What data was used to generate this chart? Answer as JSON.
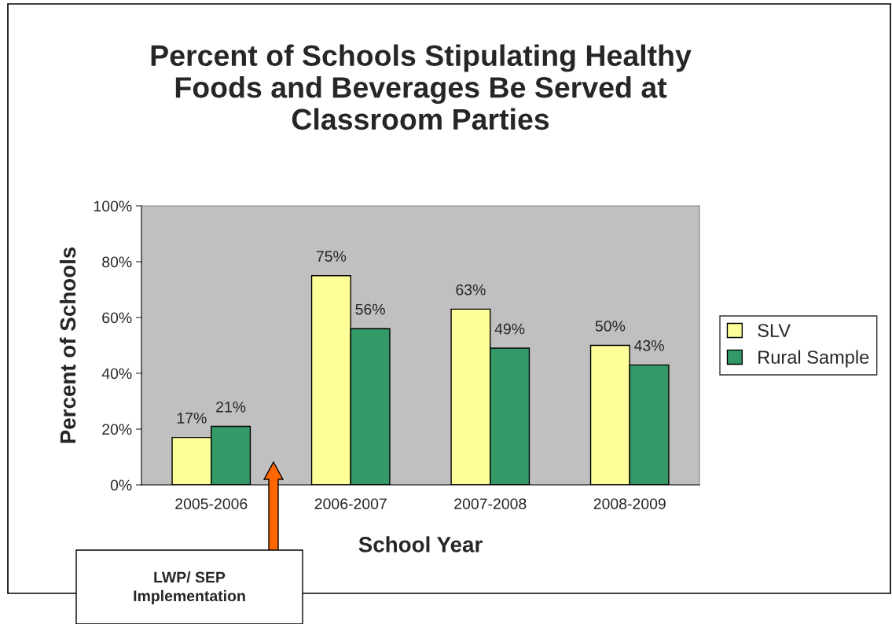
{
  "chart_data": {
    "type": "bar",
    "title": "Percent of Schools Stipulating Healthy\nFoods and Beverages Be Served at\nClassroom Parties",
    "xlabel": "School Year",
    "ylabel": "Percent of Schools",
    "categories": [
      "2005-2006",
      "2006-2007",
      "2007-2008",
      "2008-2009"
    ],
    "series": [
      {
        "name": "SLV",
        "color": "#ffff99",
        "values": [
          17,
          75,
          63,
          50
        ],
        "value_labels": [
          "17%",
          "75%",
          "63%",
          "50%"
        ]
      },
      {
        "name": "Rural Sample",
        "color": "#339966",
        "values": [
          21,
          56,
          49,
          43
        ],
        "value_labels": [
          "21%",
          "56%",
          "49%",
          "43%"
        ]
      }
    ],
    "ylim": [
      0,
      100
    ],
    "yticks": [
      {
        "value": 0,
        "label": "0%"
      },
      {
        "value": 20,
        "label": "20%"
      },
      {
        "value": 40,
        "label": "40%"
      },
      {
        "value": 60,
        "label": "60%"
      },
      {
        "value": 80,
        "label": "80%"
      },
      {
        "value": 100,
        "label": "100%"
      }
    ],
    "grid": false,
    "legend": "right",
    "annotations": [
      "LWP/ SEP\nImplementation"
    ]
  }
}
